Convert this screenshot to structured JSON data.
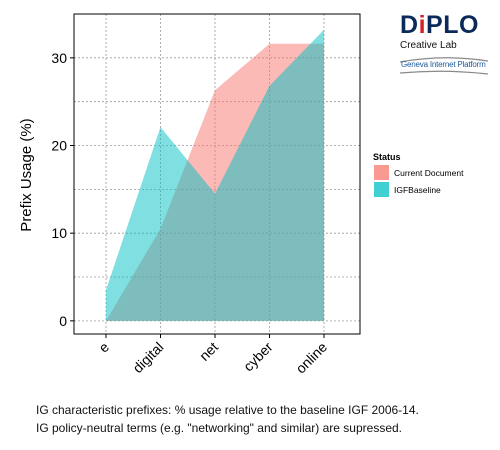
{
  "chart_data": {
    "type": "area",
    "title": "",
    "xlabel": "",
    "ylabel": "Prefix Usage (%)",
    "categories": [
      "e",
      "digital",
      "net",
      "cyber",
      "online"
    ],
    "ylim": [
      -1.5,
      35
    ],
    "yticks": [
      0,
      10,
      20,
      30
    ],
    "grid": true,
    "legend": {
      "title": "Status",
      "position": "right"
    },
    "series": [
      {
        "name": "Current Document",
        "color": "#F8766D",
        "values": [
          0,
          10.5,
          26.3,
          31.6,
          31.6
        ]
      },
      {
        "name": "IGFBaseline",
        "color": "#00BFC4",
        "values": [
          3.5,
          22.1,
          14.5,
          26.8,
          33.2
        ]
      }
    ]
  },
  "logo": {
    "wordmark_pre": "D",
    "wordmark_red": "i",
    "wordmark_post": "PLO",
    "subtitle": "Creative Lab",
    "platform": "Geneva Internet Platform"
  },
  "caption": {
    "line1": "IG characteristic prefixes: % usage relative to the baseline IGF 2006-14.",
    "line2": "IG policy-neutral terms (e.g. \"networking\" and similar) are supressed."
  }
}
